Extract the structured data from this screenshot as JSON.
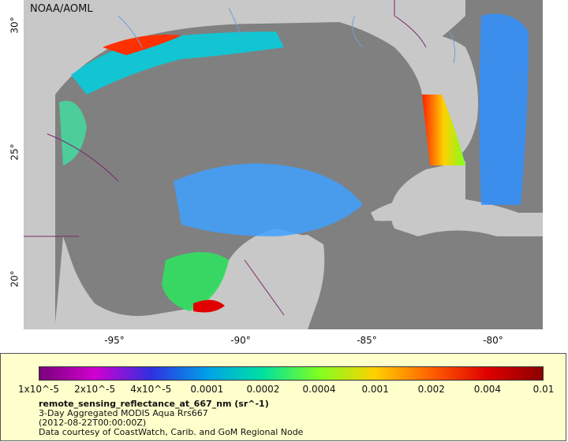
{
  "credit": "NOAA/AOML",
  "x_ticks": [
    "-95°",
    "-90°",
    "-85°",
    "-80°"
  ],
  "y_ticks": [
    "30°",
    "25°",
    "20°"
  ],
  "colors": {
    "land": "#c8c8c8",
    "ocean": "#808080",
    "rivers": "#6fa0d8",
    "borders": "#7a2a6a",
    "panel": "#ffffcc"
  },
  "legend": {
    "colorbar_ticks": [
      "1x10^-5",
      "2x10^-5",
      "4x10^-5",
      "0.0001",
      "0.0002",
      "0.0004",
      "0.001",
      "0.002",
      "0.004",
      "0.01"
    ],
    "colorbar_colors": [
      "#7a007a",
      "#d000d0",
      "#3030e0",
      "#00a0e8",
      "#00e0a0",
      "#80ff20",
      "#ffd000",
      "#ff6000",
      "#e00000",
      "#8b0000"
    ],
    "variable": "remote_sensing_reflectance_at_667_nm (sr^-1)",
    "product": "3-Day Aggregated MODIS Aqua Rrs667",
    "date": "(2012-08-22T00:00:00Z)",
    "courtesy": "Data courtesy of CoastWatch, Carib. and GoM Regional Node"
  }
}
